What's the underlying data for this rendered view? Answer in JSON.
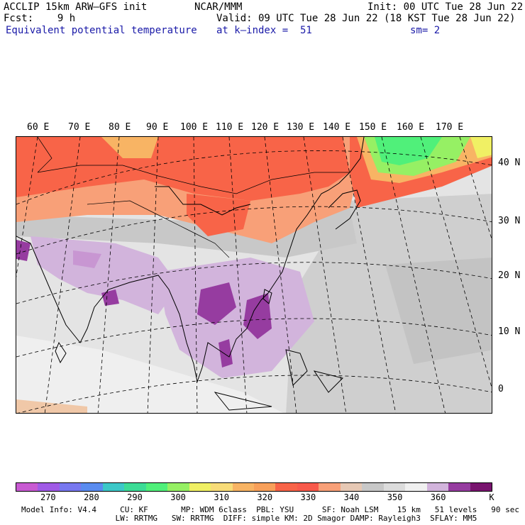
{
  "header": {
    "model": "ACCLIP 15km ARW–GFS init",
    "forecast": "Fcst:    9 h",
    "field": "Equivalent potential temperature",
    "center": "NCAR/MMM",
    "init": "Init: 00 UTC Tue 28 Jun 22",
    "valid": "Valid: 09 UTC Tue 28 Jun 22 (18 KST Tue 28 Jun 22)",
    "level": "at k–index =  51",
    "smoothing": "sm= 2"
  },
  "lon_labels": [
    "60 E",
    "70 E",
    "80 E",
    "90 E",
    "100 E",
    "110 E",
    "120 E",
    "130 E",
    "140 E",
    "150 E",
    "160 E",
    "170 E"
  ],
  "lat_labels": [
    "40 N",
    "30 N",
    "20 N",
    "10 N",
    "0"
  ],
  "colorbar": {
    "colors": [
      "#c85ad2",
      "#a05ae6",
      "#7878f0",
      "#5a8cf0",
      "#3cc8c8",
      "#3cdc96",
      "#50f07a",
      "#96f064",
      "#f0f064",
      "#f8dc78",
      "#f8b464",
      "#f8a05a",
      "#f86448",
      "#f85a4b",
      "#f8a078",
      "#e6c8b4",
      "#c8c8c8",
      "#dcdcdc",
      "#f0f0f0",
      "#d2b4dc",
      "#963ca0",
      "#78146e"
    ],
    "labels": [
      "270",
      "280",
      "290",
      "300",
      "310",
      "320",
      "330",
      "340",
      "350",
      "360"
    ],
    "unit": "K"
  },
  "footer": {
    "line1": "Model Info: V4.4     CU: KF       MP: WDM 6class  PBL: YSU      SF: Noah LSM    15 km   51 levels   90 sec",
    "line2": "                    LW: RRTMG   SW: RRTMG  DIFF: simple KM: 2D Smagor DAMP: Rayleigh3  SFLAY: MM5"
  }
}
